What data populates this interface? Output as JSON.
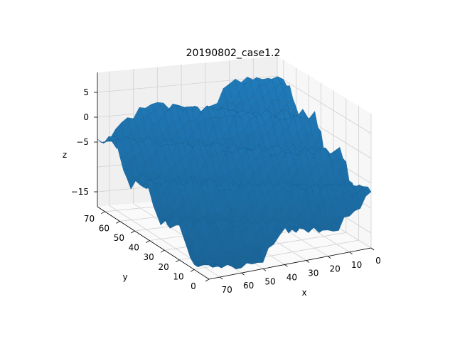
{
  "chart_data": {
    "type": "surface",
    "title": "20190802_case1.2",
    "xlabel": "x",
    "ylabel": "y",
    "zlabel": "z",
    "xlim": [
      0,
      75
    ],
    "ylim": [
      0,
      75
    ],
    "zlim": [
      -18,
      9
    ],
    "x_ticks": [
      "70",
      "60",
      "50",
      "40",
      "30",
      "20",
      "10",
      "0"
    ],
    "y_ticks": [
      "70",
      "60",
      "50",
      "40",
      "30",
      "20",
      "10",
      "0"
    ],
    "z_ticks": [
      "5",
      "0",
      "−5",
      "−15"
    ],
    "surface_color": "#1f77b4",
    "grid": true,
    "description_of_surface": {
      "z_min_approx": -17,
      "z_max_approx": 8,
      "ridges": 4,
      "trend": "z rises toward low x and high y"
    }
  },
  "colors": {
    "pane_left": "#f0f0f0",
    "pane_right": "#f7f7f7",
    "pane_floor": "#fafafa",
    "grid": "#d0d0d0",
    "surface": "#1f77b4",
    "surface_edge": "#185f92"
  }
}
